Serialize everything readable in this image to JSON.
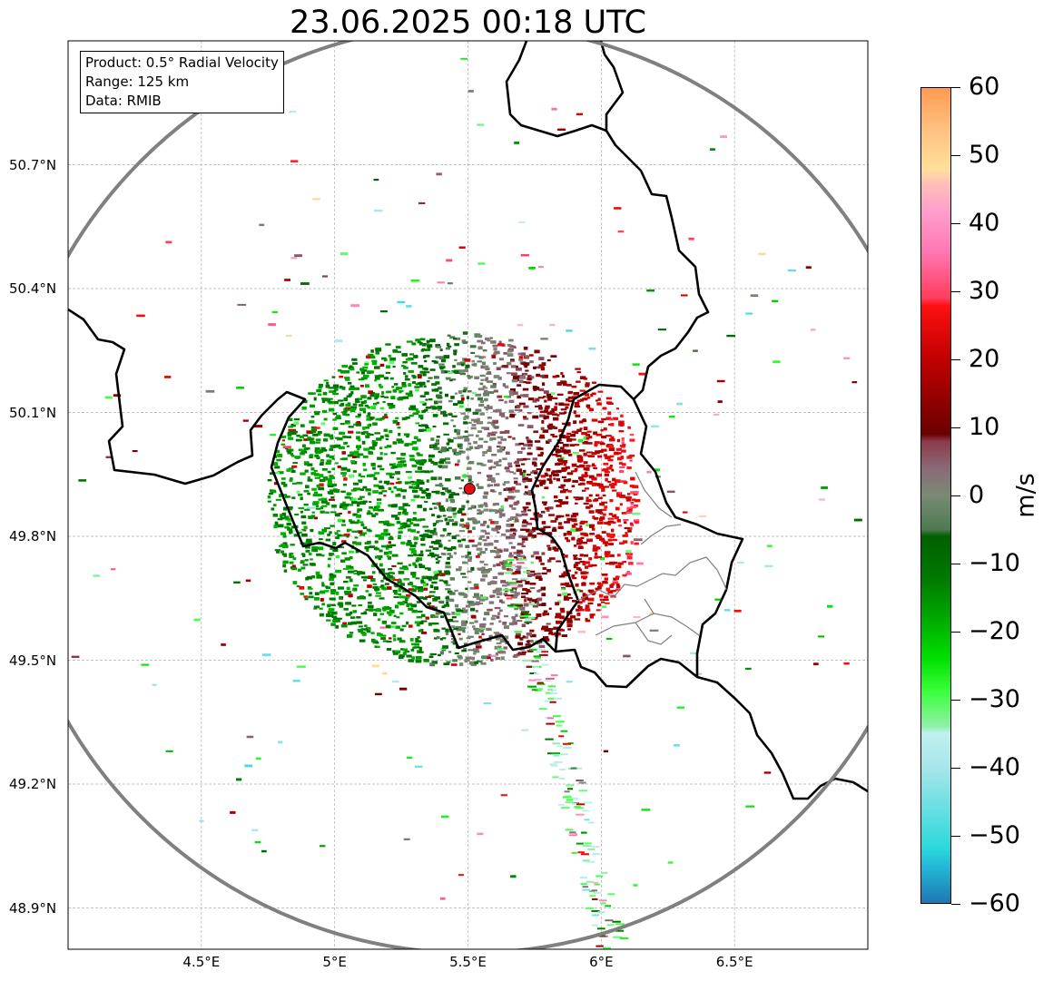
{
  "title": "23.06.2025 00:18 UTC",
  "info": {
    "line1": "Product: 0.5° Radial Velocity",
    "line2": "Range: 125 km",
    "line3": "Data: RMIB"
  },
  "axes": {
    "lat_ticks": [
      "50.7°N",
      "50.4°N",
      "50.1°N",
      "49.8°N",
      "49.5°N",
      "49.2°N",
      "48.9°N"
    ],
    "lon_ticks": [
      "4.5°E",
      "5°E",
      "5.5°E",
      "6°E",
      "6.5°E"
    ],
    "lat_values": [
      50.7,
      50.4,
      50.1,
      49.8,
      49.5,
      49.2,
      48.9
    ],
    "lon_values": [
      4.5,
      5.0,
      5.5,
      6.0,
      6.5
    ],
    "lon_range": [
      4.0,
      7.0
    ],
    "lat_range": [
      48.8,
      51.0
    ],
    "grid": true
  },
  "radar": {
    "center_lon": 5.506,
    "center_lat": 49.915,
    "range_km": 125,
    "range_ring_color": "#808080",
    "site_color": "#e01010"
  },
  "colorbar": {
    "unit": "m/s",
    "min": -60,
    "max": 60,
    "tick_values": [
      60,
      50,
      40,
      30,
      20,
      10,
      0,
      -10,
      -20,
      -30,
      -40,
      -50,
      -60
    ],
    "tick_labels": [
      "60",
      "50",
      "40",
      "30",
      "20",
      "10",
      "0",
      "−10",
      "−20",
      "−30",
      "−40",
      "−50",
      "−60"
    ],
    "stops": [
      {
        "v": -60,
        "c": "#1f77b4"
      },
      {
        "v": -55,
        "c": "#22b4d4"
      },
      {
        "v": -52,
        "c": "#2ad8dc"
      },
      {
        "v": -40,
        "c": "#a8e6ea"
      },
      {
        "v": -35,
        "c": "#c0f0f0"
      },
      {
        "v": -34,
        "c": "#90f0a8"
      },
      {
        "v": -29,
        "c": "#3cff3c"
      },
      {
        "v": -24,
        "c": "#00e000"
      },
      {
        "v": -18,
        "c": "#00a800"
      },
      {
        "v": -12,
        "c": "#007800"
      },
      {
        "v": -6,
        "c": "#006000"
      },
      {
        "v": -5,
        "c": "#4e7a50"
      },
      {
        "v": 0,
        "c": "#7a8a74"
      },
      {
        "v": 4,
        "c": "#8a6a78"
      },
      {
        "v": 8,
        "c": "#8a3a48"
      },
      {
        "v": 9,
        "c": "#6a0000"
      },
      {
        "v": 20,
        "c": "#c00000"
      },
      {
        "v": 28,
        "c": "#ff1010"
      },
      {
        "v": 29,
        "c": "#ff3c5c"
      },
      {
        "v": 36,
        "c": "#ff78b4"
      },
      {
        "v": 42,
        "c": "#ffa0cc"
      },
      {
        "v": 46,
        "c": "#ffc0b8"
      },
      {
        "v": 48,
        "c": "#ffe09a"
      },
      {
        "v": 54,
        "c": "#ffc080"
      },
      {
        "v": 60,
        "c": "#ff9a50"
      }
    ]
  }
}
